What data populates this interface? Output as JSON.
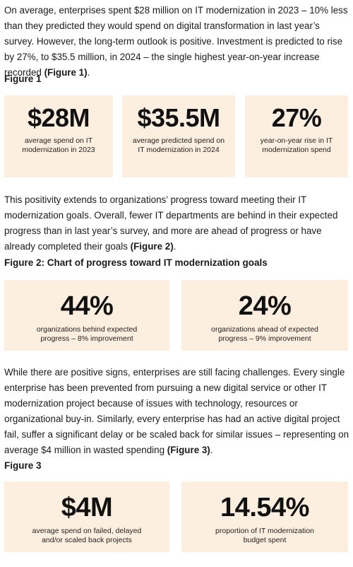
{
  "intro": {
    "text": "On average, enterprises spent $28 million on IT modernization in 2023 – 10% less than they predicted they would spend on digital transformation in last year’s survey. However, the long-term outlook is positive. Investment is predicted to rise by 27%, to $35.5 million, in 2024 – the single highest year-on-year increase recorded ",
    "ref": "(Figure 1)",
    "end": "."
  },
  "figure1": {
    "heading": "Figure 1",
    "cards": [
      {
        "value": "$28M",
        "caption": "average spend on IT modernization in 2023"
      },
      {
        "value": "$35.5M",
        "caption": "average predicted spend on IT modernization in 2024"
      },
      {
        "value": "27%",
        "caption": "year-on-year rise in IT modernization spend"
      }
    ]
  },
  "progress_para": {
    "text": "This positivity extends to organizations’ progress toward meeting their IT modernization goals. Overall, fewer IT departments are behind in their expected progress than in last year’s survey, and more are ahead of progress or have already completed their goals ",
    "ref": "(Figure 2)",
    "end": "."
  },
  "figure2": {
    "heading": "Figure 2: Chart of progress toward IT modernization goals",
    "cards": [
      {
        "value": "44%",
        "caption": "organizations behind expected progress – 8% improvement"
      },
      {
        "value": "24%",
        "caption": "organizations ahead of expected progress – 9% improvement"
      }
    ]
  },
  "challenges_para": {
    "text": "While there are positive signs, enterprises are still facing challenges. Every single enterprise has been prevented from pursuing a new digital service or other IT modernization project because of issues with technology, resources or organizational buy-in. Similarly, every enterprise has had an active digital project fail, suffer a significant delay or be scaled back for similar issues – representing on average $4 million in wasted spending ",
    "ref": "(Figure 3)",
    "end": "."
  },
  "figure3": {
    "heading": "Figure 3",
    "cards": [
      {
        "value": "$4M",
        "caption": "average spend on failed, delayed and/or scaled back projects"
      },
      {
        "value": "14.54%",
        "caption": "proportion of IT modernization budget spent"
      }
    ]
  }
}
